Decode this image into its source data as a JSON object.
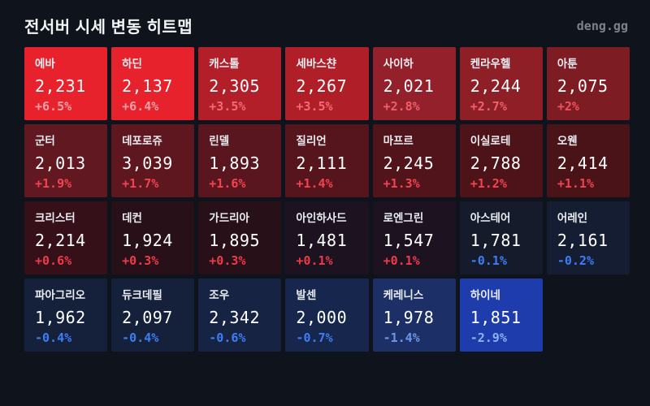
{
  "header": {
    "title": "전서버 시세 변동 히트맵",
    "logo": "deng.gg"
  },
  "chart_data": {
    "type": "heatmap",
    "title": "전서버 시세 변동 히트맵",
    "layout": {
      "columns": 7,
      "rows": 4
    },
    "legend": "red = price up, blue = price down; intensity = magnitude of change",
    "cells": [
      {
        "name": "에바",
        "price": "2,231",
        "change": "+6.5%",
        "bg": "#e7222d",
        "pct_color": "#efa0a4"
      },
      {
        "name": "하딘",
        "price": "2,137",
        "change": "+6.4%",
        "bg": "#e7222d",
        "pct_color": "#efa0a4"
      },
      {
        "name": "캐스톨",
        "price": "2,305",
        "change": "+3.5%",
        "bg": "#b21f28",
        "pct_color": "#f26b74"
      },
      {
        "name": "세바스챤",
        "price": "2,267",
        "change": "+3.5%",
        "bg": "#b01f28",
        "pct_color": "#f26b74"
      },
      {
        "name": "사이하",
        "price": "2,021",
        "change": "+2.8%",
        "bg": "#93202a",
        "pct_color": "#f05f6a"
      },
      {
        "name": "켄라우헬",
        "price": "2,244",
        "change": "+2.7%",
        "bg": "#8e1f26",
        "pct_color": "#f05f6a"
      },
      {
        "name": "아툰",
        "price": "2,075",
        "change": "+2%",
        "bg": "#7d1c23",
        "pct_color": "#ef525f"
      },
      {
        "name": "군터",
        "price": "2,013",
        "change": "+1.9%",
        "bg": "#611820",
        "pct_color": "#f24350"
      },
      {
        "name": "데포로쥬",
        "price": "3,039",
        "change": "+1.7%",
        "bg": "#5e171f",
        "pct_color": "#f24350"
      },
      {
        "name": "린델",
        "price": "1,893",
        "change": "+1.6%",
        "bg": "#5a161e",
        "pct_color": "#f24350"
      },
      {
        "name": "질리언",
        "price": "2,111",
        "change": "+1.4%",
        "bg": "#56151c",
        "pct_color": "#f24350"
      },
      {
        "name": "마프르",
        "price": "2,245",
        "change": "+1.3%",
        "bg": "#52141b",
        "pct_color": "#f24350"
      },
      {
        "name": "이실로테",
        "price": "2,788",
        "change": "+1.2%",
        "bg": "#4e1319",
        "pct_color": "#f24350"
      },
      {
        "name": "오웬",
        "price": "2,414",
        "change": "+1.1%",
        "bg": "#4a1318",
        "pct_color": "#f24350"
      },
      {
        "name": "크리스터",
        "price": "2,214",
        "change": "+0.6%",
        "bg": "#351018",
        "pct_color": "#ee3a49"
      },
      {
        "name": "데컨",
        "price": "1,924",
        "change": "+0.3%",
        "bg": "#281018",
        "pct_color": "#ee3a49"
      },
      {
        "name": "가드리아",
        "price": "1,895",
        "change": "+0.3%",
        "bg": "#281018",
        "pct_color": "#ee3a49"
      },
      {
        "name": "아인하사드",
        "price": "1,481",
        "change": "+0.1%",
        "bg": "#1c1220",
        "pct_color": "#ee3a49"
      },
      {
        "name": "로엔그린",
        "price": "1,547",
        "change": "+0.1%",
        "bg": "#1c1220",
        "pct_color": "#ee3a49"
      },
      {
        "name": "아스테어",
        "price": "1,781",
        "change": "-0.1%",
        "bg": "#161b2c",
        "pct_color": "#3d7ef5"
      },
      {
        "name": "어레인",
        "price": "2,161",
        "change": "-0.2%",
        "bg": "#151d33",
        "pct_color": "#3d7ef5"
      },
      {
        "name": "파아그리오",
        "price": "1,962",
        "change": "-0.4%",
        "bg": "#15203a",
        "pct_color": "#3d7ef5"
      },
      {
        "name": "듀크데필",
        "price": "2,097",
        "change": "-0.4%",
        "bg": "#15203a",
        "pct_color": "#3d7ef5"
      },
      {
        "name": "조우",
        "price": "2,342",
        "change": "-0.6%",
        "bg": "#162343",
        "pct_color": "#3d7ef5"
      },
      {
        "name": "발센",
        "price": "2,000",
        "change": "-0.7%",
        "bg": "#17264c",
        "pct_color": "#3d7ef5"
      },
      {
        "name": "케레니스",
        "price": "1,978",
        "change": "-1.4%",
        "bg": "#1c3067",
        "pct_color": "#6c97e8"
      },
      {
        "name": "하이네",
        "price": "1,851",
        "change": "-2.9%",
        "bg": "#1e3cab",
        "pct_color": "#8fb2f2"
      }
    ]
  }
}
